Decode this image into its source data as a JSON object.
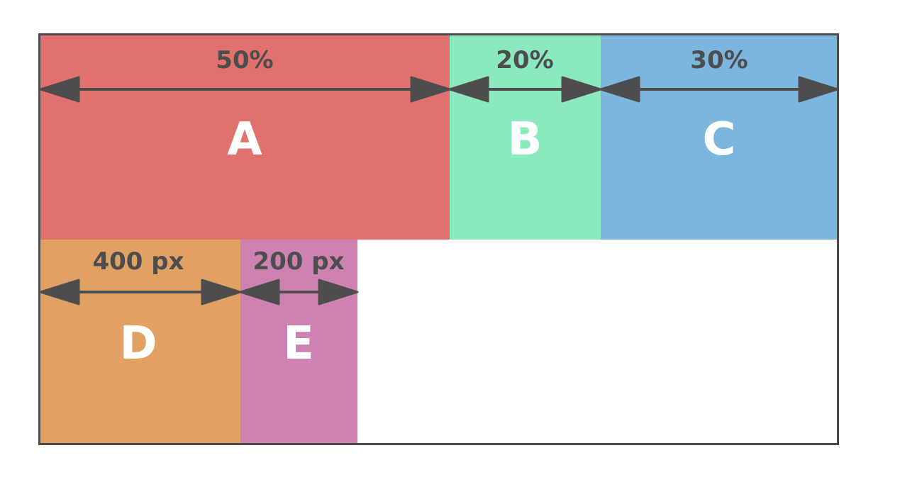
{
  "colors": {
    "A": "#e1716f",
    "B": "#8aeabd",
    "C": "#7ab6dd",
    "D": "#e0a162",
    "E": "#cd82b2",
    "stroke": "#4d4d4d"
  },
  "boxes": {
    "A": {
      "label": "A",
      "dimension": "50%"
    },
    "B": {
      "label": "B",
      "dimension": "20%"
    },
    "C": {
      "label": "C",
      "dimension": "30%"
    },
    "D": {
      "label": "D",
      "dimension": "400 px"
    },
    "E": {
      "label": "E",
      "dimension": "200 px"
    }
  }
}
